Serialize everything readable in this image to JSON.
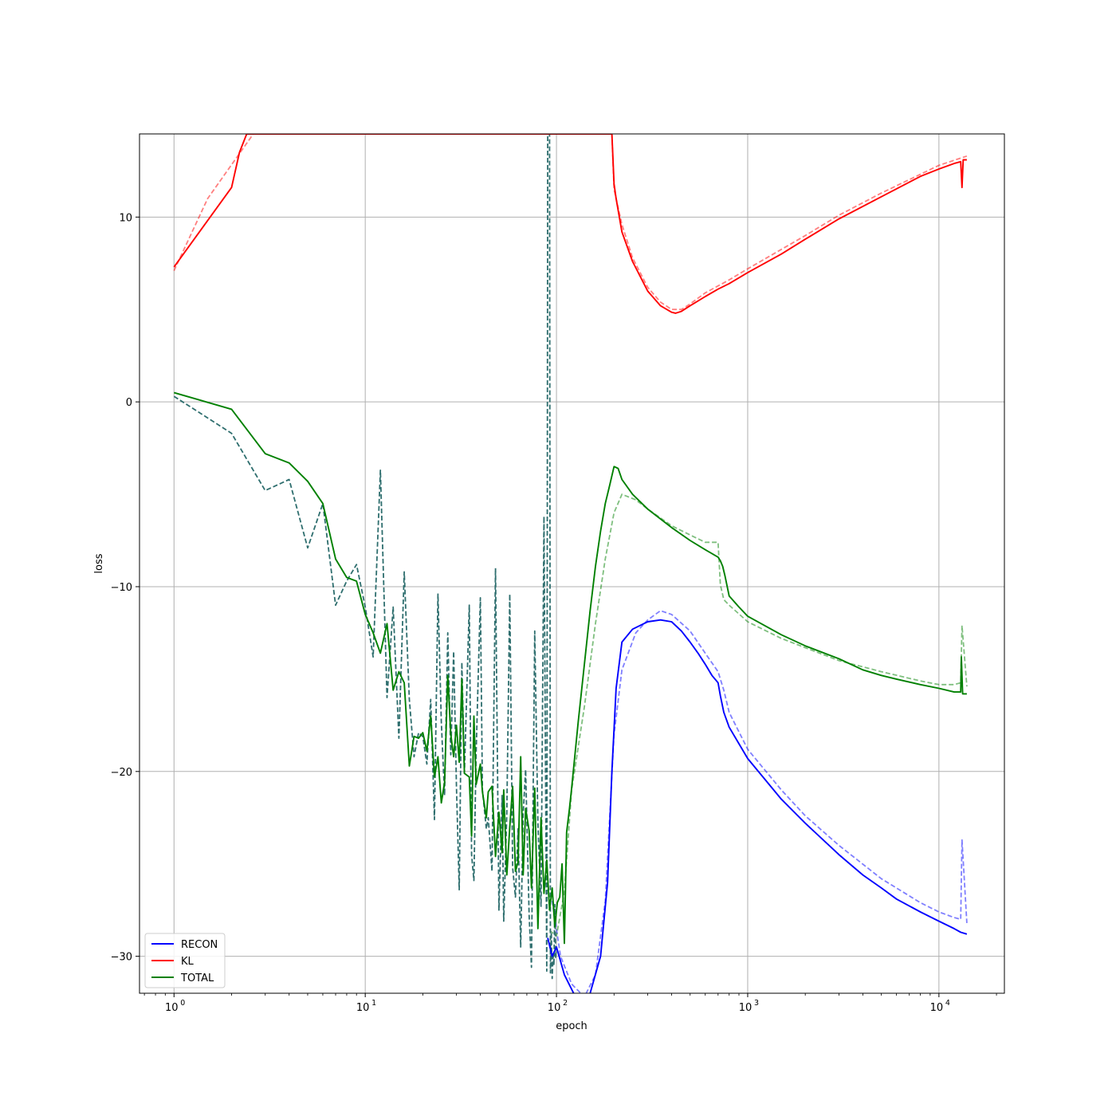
{
  "chart_data": {
    "type": "line",
    "xlabel": "epoch",
    "ylabel": "loss",
    "xscale": "log",
    "xlim": [
      0.66,
      22000
    ],
    "ylim": [
      -32,
      14.5
    ],
    "grid": true,
    "legend_position": "lower-left",
    "x_ticks": [
      {
        "value": 1,
        "label": "10",
        "exp": "0"
      },
      {
        "value": 10,
        "label": "10",
        "exp": "1"
      },
      {
        "value": 100,
        "label": "10",
        "exp": "2"
      },
      {
        "value": 1000,
        "label": "10",
        "exp": "3"
      },
      {
        "value": 10000,
        "label": "10",
        "exp": "4"
      }
    ],
    "y_ticks": [
      {
        "value": 10,
        "label": "10"
      },
      {
        "value": 0,
        "label": "0"
      },
      {
        "value": -10,
        "label": "−10"
      },
      {
        "value": -20,
        "label": "−20"
      },
      {
        "value": -30,
        "label": "−30"
      }
    ],
    "legend": [
      {
        "name": "RECON",
        "color": "#0000ff"
      },
      {
        "name": "KL",
        "color": "#ff0000"
      },
      {
        "name": "TOTAL",
        "color": "#008000"
      }
    ],
    "series": [
      {
        "name": "RECON",
        "style": "solid",
        "color": "#0000ff",
        "x": [
          90,
          95,
          100,
          110,
          130,
          150,
          170,
          185,
          195,
          205,
          220,
          250,
          300,
          350,
          400,
          450,
          500,
          550,
          600,
          650,
          700,
          720,
          750,
          800,
          900,
          1000,
          1500,
          2000,
          3000,
          4000,
          5000,
          6000,
          8000,
          10000,
          12000,
          13000,
          14000
        ],
        "y": [
          -29,
          -30,
          -29.5,
          -31,
          -32.5,
          -32,
          -30,
          -26,
          -20,
          -15.5,
          -13,
          -12.3,
          -11.9,
          -11.8,
          -11.9,
          -12.4,
          -13,
          -13.6,
          -14.2,
          -14.8,
          -15.2,
          -15.9,
          -16.8,
          -17.6,
          -18.5,
          -19.3,
          -21.5,
          -22.8,
          -24.5,
          -25.6,
          -26.3,
          -26.9,
          -27.6,
          -28.1,
          -28.5,
          -28.7,
          -28.8
        ]
      },
      {
        "name": "RECON (validation)",
        "style": "dashed",
        "color": "#0000ff",
        "opacity": 0.5,
        "x": [
          95,
          105,
          120,
          140,
          160,
          180,
          200,
          220,
          260,
          300,
          350,
          400,
          500,
          600,
          700,
          750,
          800,
          1000,
          1500,
          2000,
          3000,
          5000,
          8000,
          10000,
          12000,
          13000,
          13200,
          14000
        ],
        "y": [
          -27,
          -30,
          -31.5,
          -32.2,
          -31,
          -27,
          -18,
          -14.5,
          -12.5,
          -11.8,
          -11.3,
          -11.5,
          -12.4,
          -13.6,
          -14.6,
          -15.6,
          -16.8,
          -18.8,
          -21,
          -22.4,
          -24,
          -25.8,
          -27.1,
          -27.6,
          -27.9,
          -28,
          -23.7,
          -28.2
        ]
      },
      {
        "name": "KL",
        "style": "solid",
        "color": "#ff0000",
        "x": [
          1,
          2,
          2.2,
          2.4,
          195,
          200,
          205,
          220,
          250,
          300,
          350,
          400,
          420,
          450,
          500,
          600,
          700,
          800,
          1000,
          1500,
          2000,
          3000,
          5000,
          8000,
          10000,
          12000,
          13000,
          13200,
          13400,
          14000
        ],
        "y": [
          7.3,
          11.6,
          13.5,
          14.5,
          14.5,
          11.8,
          11,
          9.2,
          7.6,
          6,
          5.2,
          4.85,
          4.8,
          4.9,
          5.2,
          5.7,
          6.1,
          6.4,
          7,
          8,
          8.8,
          9.9,
          11.1,
          12.2,
          12.6,
          12.9,
          13,
          11.6,
          13.1,
          13.1
        ]
      },
      {
        "name": "KL (validation)",
        "style": "dashed",
        "color": "#ff0000",
        "opacity": 0.5,
        "x": [
          1,
          1.5,
          2.6,
          195,
          200,
          220,
          250,
          300,
          350,
          400,
          450,
          500,
          600,
          800,
          1000,
          2000,
          3000,
          5000,
          10000,
          14000
        ],
        "y": [
          7.1,
          11,
          14.5,
          14.5,
          11.5,
          9.6,
          7.8,
          6.2,
          5.4,
          5.0,
          5.0,
          5.3,
          5.9,
          6.6,
          7.2,
          9.0,
          10.1,
          11.3,
          12.8,
          13.3
        ]
      },
      {
        "name": "TOTAL",
        "style": "solid",
        "color": "#008000",
        "x": [
          1,
          2,
          3,
          4,
          5,
          6,
          7,
          8,
          9,
          10,
          11,
          12,
          13,
          14,
          15,
          16,
          17,
          18,
          19,
          20,
          21,
          22,
          23,
          24,
          25,
          26,
          27,
          28,
          29,
          30,
          31,
          32,
          33,
          35,
          36,
          37,
          38,
          40,
          41,
          43,
          44,
          46,
          48,
          50,
          52,
          53,
          55,
          57,
          59,
          61,
          63,
          65,
          67,
          69,
          72,
          74,
          77,
          80,
          83,
          86,
          89,
          92,
          95,
          98,
          101,
          104,
          107,
          110,
          113,
          117,
          120,
          130,
          140,
          150,
          160,
          170,
          180,
          190,
          200,
          210,
          220,
          250,
          300,
          400,
          500,
          600,
          700,
          720,
          740,
          760,
          800,
          900,
          1000,
          1500,
          2000,
          3000,
          4000,
          5000,
          6000,
          8000,
          10000,
          12000,
          13000,
          13100,
          13300,
          14000
        ],
        "y": [
          0.5,
          -0.4,
          -2.8,
          -3.3,
          -4.3,
          -5.5,
          -8.5,
          -9.5,
          -9.7,
          -11.5,
          -12.5,
          -13.6,
          -12,
          -15.6,
          -14.6,
          -15.2,
          -19.7,
          -18.1,
          -18.2,
          -17.9,
          -18.9,
          -17,
          -20.3,
          -19.2,
          -21.7,
          -20.6,
          -14.8,
          -18,
          -19.2,
          -17.5,
          -19.5,
          -15,
          -20.1,
          -20.3,
          -23.5,
          -17,
          -20.7,
          -19.6,
          -21.1,
          -22.5,
          -21.1,
          -20.8,
          -24.6,
          -22.2,
          -24.4,
          -21,
          -25.6,
          -23,
          -20.8,
          -25.4,
          -24.9,
          -19.2,
          -25.6,
          -22,
          -23.2,
          -26.3,
          -20.9,
          -28.5,
          -22.5,
          -26.6,
          -24.8,
          -27.5,
          -26.3,
          -28.4,
          -27.1,
          -26.8,
          -25,
          -29.3,
          -23.3,
          -22,
          -20.9,
          -17.3,
          -14.2,
          -11.3,
          -8.9,
          -7,
          -5.5,
          -4.5,
          -3.5,
          -3.6,
          -4.2,
          -5,
          -5.8,
          -6.8,
          -7.5,
          -8,
          -8.4,
          -8.6,
          -8.9,
          -9.4,
          -10.5,
          -11.1,
          -11.6,
          -12.6,
          -13.2,
          -13.9,
          -14.5,
          -14.8,
          -15.0,
          -15.3,
          -15.5,
          -15.7,
          -15.7,
          -13.8,
          -15.8,
          -15.8
        ]
      },
      {
        "name": "TOTAL (validation)",
        "style": "dashed",
        "color": "#008000",
        "opacity": 0.5,
        "x": [
          92,
          100,
          110,
          120,
          140,
          160,
          180,
          200,
          220,
          260,
          300,
          400,
          500,
          600,
          700,
          720,
          750,
          800,
          1000,
          1500,
          2000,
          3000,
          5000,
          8000,
          10000,
          12000,
          13000,
          13200,
          14000
        ],
        "y": [
          -28.6,
          -28.9,
          -26.5,
          -21,
          -16.5,
          -12,
          -8.5,
          -6,
          -5.0,
          -5.3,
          -5.8,
          -6.7,
          -7.2,
          -7.6,
          -7.6,
          -9.9,
          -10.7,
          -11,
          -11.9,
          -12.8,
          -13.3,
          -14,
          -14.6,
          -15.1,
          -15.3,
          -15.3,
          -15.2,
          -12.1,
          -15.4
        ]
      },
      {
        "name": "TOTAL validation (early)",
        "style": "dashed",
        "color": "#2e6e6e",
        "x": [
          1,
          2,
          3,
          4,
          5,
          6,
          7,
          8,
          9,
          10,
          11,
          12,
          13,
          14,
          15,
          16,
          17,
          18,
          19,
          20,
          21,
          22,
          23,
          24,
          25,
          26,
          27,
          28,
          29,
          30,
          31,
          32,
          33,
          35,
          36,
          37,
          38,
          40,
          41,
          43,
          44,
          46,
          48,
          50,
          52,
          53,
          55,
          57,
          59,
          61,
          63,
          65,
          67,
          69,
          72,
          74,
          77,
          80,
          83,
          86,
          89,
          90,
          92,
          93,
          94,
          95,
          96,
          97,
          98,
          99,
          100
        ],
        "y": [
          0.3,
          -1.7,
          -4.8,
          -4.2,
          -7.9,
          -5.5,
          -11,
          -9.7,
          -8.8,
          -11.1,
          -13.8,
          -3.7,
          -16,
          -11.1,
          -18.2,
          -9.2,
          -16.1,
          -19.2,
          -17.9,
          -18.1,
          -19.6,
          -16.1,
          -22.6,
          -10.4,
          -17.3,
          -21.3,
          -12.5,
          -19.1,
          -13.5,
          -20.8,
          -26.4,
          -14.1,
          -20.1,
          -11,
          -24.5,
          -25.9,
          -19,
          -10.6,
          -21,
          -23.1,
          -22.5,
          -25.4,
          -9,
          -27.5,
          -21.3,
          -28.1,
          -22.2,
          -10.4,
          -25.2,
          -26.8,
          -23.1,
          -29.5,
          -22.3,
          -19.9,
          -27.8,
          -30.6,
          -12.4,
          -22.8,
          -27.3,
          -6.2,
          -30.8,
          14.5,
          14.5,
          -30.9,
          -28.7,
          -31.2,
          -29.8,
          -30.5,
          -27.2,
          -30.1,
          -29.5
        ]
      }
    ]
  }
}
